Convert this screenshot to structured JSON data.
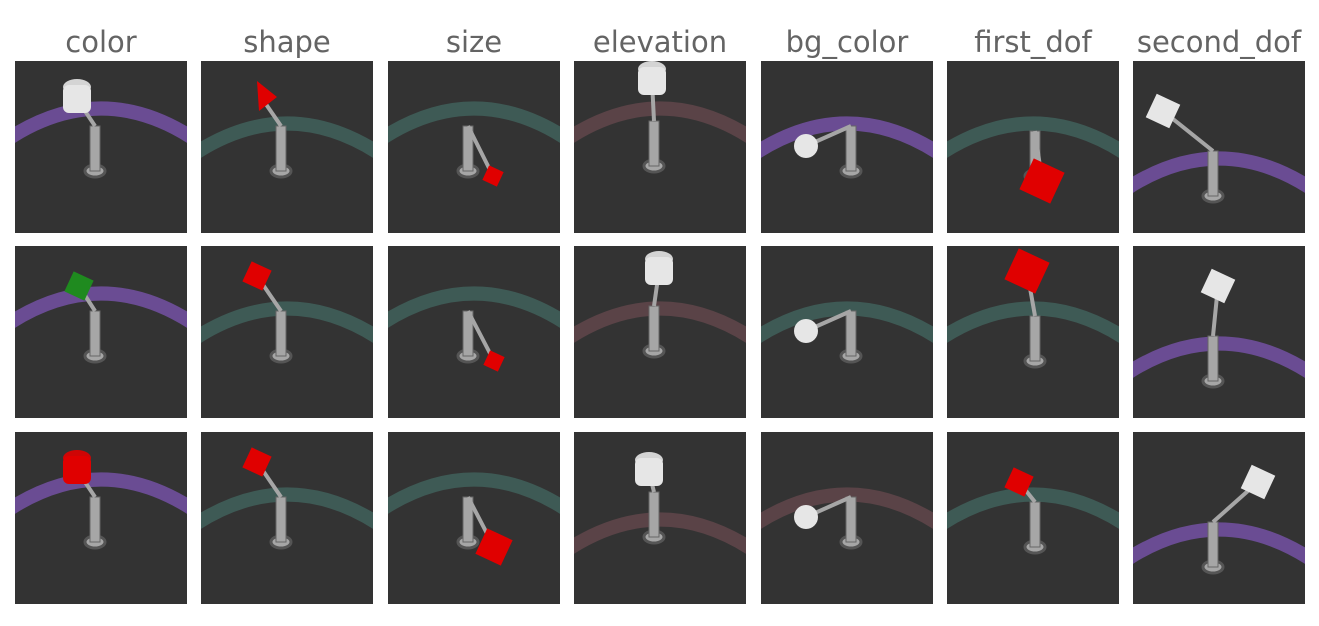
{
  "figure": {
    "columns": [
      {
        "title": "color"
      },
      {
        "title": "shape"
      },
      {
        "title": "size"
      },
      {
        "title": "elevation"
      },
      {
        "title": "bg_color"
      },
      {
        "title": "first_dof"
      },
      {
        "title": "second_dof"
      }
    ]
  },
  "palette": {
    "tile_background": "#333333",
    "ring_purple": "#6a4c93",
    "ring_teal": "#3e5a55",
    "ring_mauve": "#5a4347",
    "object_white": "#e6e6e6",
    "object_red": "#e00000",
    "object_green": "#1f8a1f",
    "robot_gray": "#a6a6a6"
  },
  "tiles": [
    {
      "column": "color",
      "row": 1,
      "object": "white cylinder",
      "ring": "purple"
    },
    {
      "column": "color",
      "row": 2,
      "object": "green cube",
      "ring": "purple"
    },
    {
      "column": "color",
      "row": 3,
      "object": "red cylinder",
      "ring": "purple"
    },
    {
      "column": "shape",
      "row": 1,
      "object": "red cone",
      "ring": "teal"
    },
    {
      "column": "shape",
      "row": 2,
      "object": "red cube",
      "ring": "teal"
    },
    {
      "column": "shape",
      "row": 3,
      "object": "red cube",
      "ring": "teal"
    },
    {
      "column": "size",
      "row": 1,
      "object": "small red cube",
      "ring": "teal"
    },
    {
      "column": "size",
      "row": 2,
      "object": "small red cube",
      "ring": "teal"
    },
    {
      "column": "size",
      "row": 3,
      "object": "large red cube",
      "ring": "teal"
    },
    {
      "column": "elevation",
      "row": 1,
      "object": "white cylinder",
      "ring": "mauve"
    },
    {
      "column": "elevation",
      "row": 2,
      "object": "white cylinder",
      "ring": "mauve"
    },
    {
      "column": "elevation",
      "row": 3,
      "object": "white cylinder",
      "ring": "mauve"
    },
    {
      "column": "bg_color",
      "row": 1,
      "object": "white sphere",
      "ring": "purple"
    },
    {
      "column": "bg_color",
      "row": 2,
      "object": "white sphere",
      "ring": "teal"
    },
    {
      "column": "bg_color",
      "row": 3,
      "object": "white sphere",
      "ring": "mauve"
    },
    {
      "column": "first_dof",
      "row": 1,
      "object": "red cube",
      "ring": "teal"
    },
    {
      "column": "first_dof",
      "row": 2,
      "object": "red cube",
      "ring": "teal"
    },
    {
      "column": "first_dof",
      "row": 3,
      "object": "red cube",
      "ring": "teal"
    },
    {
      "column": "second_dof",
      "row": 1,
      "object": "white cube",
      "ring": "purple"
    },
    {
      "column": "second_dof",
      "row": 2,
      "object": "white cube",
      "ring": "purple"
    },
    {
      "column": "second_dof",
      "row": 3,
      "object": "white cube",
      "ring": "purple"
    }
  ]
}
